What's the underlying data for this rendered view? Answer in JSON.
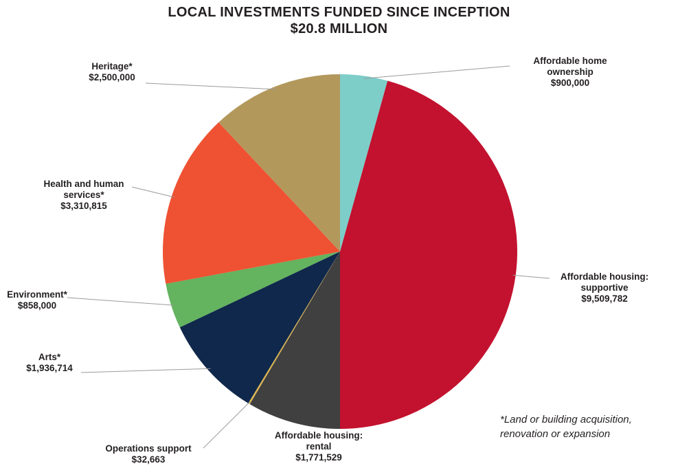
{
  "chart_data": {
    "type": "pie",
    "title": "LOCAL INVESTMENTS FUNDED SINCE INCEPTION",
    "subtitle": "$20.8 MILLION",
    "start": "12 o'clock",
    "direction": "clockwise",
    "slices": [
      {
        "label_lines": [
          "Affordable home",
          "ownership"
        ],
        "value_text": "$900,000",
        "value": 900000,
        "color": "#7dcdc9"
      },
      {
        "label_lines": [
          "Affordable housing:",
          "supportive"
        ],
        "value_text": "$9,509,782",
        "value": 9509782,
        "color": "#c2122f"
      },
      {
        "label_lines": [
          "Affordable housing:",
          "rental"
        ],
        "value_text": "$1,771,529",
        "value": 1771529,
        "color": "#404040"
      },
      {
        "label_lines": [
          "Operations support"
        ],
        "value_text": "$32,663",
        "value": 32663,
        "color": "#e2b84a"
      },
      {
        "label_lines": [
          "Arts*"
        ],
        "value_text": "$1,936,714",
        "value": 1936714,
        "color": "#10284b"
      },
      {
        "label_lines": [
          "Environment*"
        ],
        "value_text": "$858,000",
        "value": 858000,
        "color": "#63b35f"
      },
      {
        "label_lines": [
          "Health and human",
          "services*"
        ],
        "value_text": "$3,310,815",
        "value": 3310815,
        "color": "#ee5232"
      },
      {
        "label_lines": [
          "Heritage*"
        ],
        "value_text": "$2,500,000",
        "value": 2500000,
        "color": "#b3985c"
      }
    ],
    "footnote_lines": [
      "*Land or building acquisition,",
      "renovation or expansion"
    ]
  }
}
